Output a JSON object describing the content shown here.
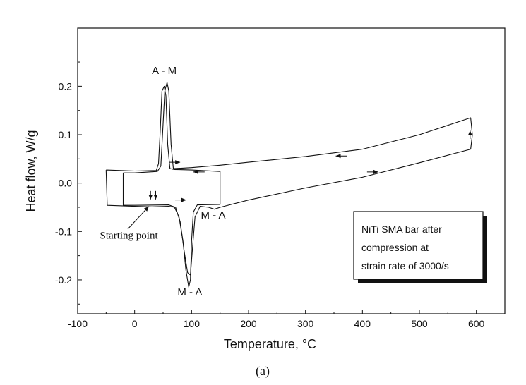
{
  "chart_data": {
    "type": "line",
    "title": "",
    "xlabel": "Temperature,   °C",
    "ylabel": "Heat flow,   W/g",
    "xlim": [
      -100,
      650
    ],
    "ylim": [
      -0.27,
      0.32
    ],
    "x_ticks": [
      -100,
      0,
      100,
      200,
      300,
      400,
      500,
      600
    ],
    "x_tick_labels": [
      "-100",
      "0",
      "100",
      "200",
      "300",
      "400",
      "500",
      "600"
    ],
    "y_ticks": [
      -0.2,
      -0.1,
      0.0,
      0.1,
      0.2
    ],
    "y_tick_labels": [
      "-0.2",
      "-0.1",
      "0.0",
      "0.1",
      "0.2"
    ],
    "grid": false,
    "series": [
      {
        "points": [
          [
            -50,
            0.027
          ],
          [
            -48,
            -0.046
          ],
          [
            0,
            -0.048
          ],
          [
            30,
            -0.049
          ],
          [
            60,
            -0.048
          ],
          [
            70,
            -0.05
          ],
          [
            78,
            -0.07
          ],
          [
            85,
            -0.12
          ],
          [
            90,
            -0.18
          ],
          [
            95,
            -0.215
          ],
          [
            98,
            -0.2
          ],
          [
            100,
            -0.12
          ],
          [
            103,
            -0.06
          ],
          [
            110,
            -0.045
          ],
          [
            150,
            -0.044
          ],
          [
            150,
            0.024
          ],
          [
            100,
            0.027
          ],
          [
            70,
            0.028
          ],
          [
            62,
            0.03
          ],
          [
            58,
            0.08
          ],
          [
            55,
            0.18
          ],
          [
            52,
            0.2
          ],
          [
            48,
            0.19
          ],
          [
            45,
            0.11
          ],
          [
            42,
            0.04
          ],
          [
            38,
            0.026
          ],
          [
            0,
            0.025
          ],
          [
            -50,
            0.027
          ]
        ]
      },
      {
        "points": [
          [
            -20,
            0.021
          ],
          [
            -20,
            -0.046
          ],
          [
            0,
            -0.046
          ],
          [
            60,
            -0.045
          ],
          [
            72,
            -0.05
          ],
          [
            80,
            -0.08
          ],
          [
            87,
            -0.14
          ],
          [
            93,
            -0.185
          ],
          [
            98,
            -0.19
          ],
          [
            102,
            -0.13
          ],
          [
            106,
            -0.07
          ],
          [
            115,
            -0.048
          ],
          [
            130,
            -0.05
          ],
          [
            140,
            -0.054
          ],
          [
            150,
            -0.05
          ],
          [
            200,
            -0.035
          ],
          [
            300,
            -0.01
          ],
          [
            400,
            0.012
          ],
          [
            500,
            0.042
          ],
          [
            590,
            0.07
          ],
          [
            593,
            0.1
          ],
          [
            590,
            0.135
          ],
          [
            500,
            0.1
          ],
          [
            400,
            0.07
          ],
          [
            300,
            0.055
          ],
          [
            200,
            0.043
          ],
          [
            150,
            0.037
          ],
          [
            100,
            0.032
          ],
          [
            68,
            0.03
          ],
          [
            64,
            0.08
          ],
          [
            60,
            0.19
          ],
          [
            57,
            0.208
          ],
          [
            53,
            0.19
          ],
          [
            49,
            0.1
          ],
          [
            46,
            0.035
          ],
          [
            40,
            0.024
          ],
          [
            0,
            0.021
          ],
          [
            -20,
            0.021
          ]
        ]
      }
    ],
    "annotations": [
      {
        "text": "A - M",
        "x": 52,
        "y": 0.225,
        "font": "sans"
      },
      {
        "text": "M - A",
        "x": 138,
        "y": -0.073,
        "font": "sans"
      },
      {
        "text": "M - A",
        "x": 97,
        "y": -0.232,
        "font": "sans"
      },
      {
        "text": "Starting point",
        "x": -10,
        "y": -0.115,
        "font": "serif"
      }
    ],
    "arrows": [
      {
        "x": 70,
        "y": 0.043,
        "dir": "right"
      },
      {
        "x": 113,
        "y": 0.023,
        "dir": "left"
      },
      {
        "x": 363,
        "y": 0.056,
        "dir": "left"
      },
      {
        "x": 418,
        "y": 0.023,
        "dir": "right"
      },
      {
        "x": 81,
        "y": -0.035,
        "dir": "right"
      },
      {
        "x": 589,
        "y": 0.1,
        "dir": "up"
      },
      {
        "x": 28,
        "y": -0.025,
        "dir": "down"
      },
      {
        "x": 37,
        "y": -0.025,
        "dir": "down"
      }
    ],
    "legend_box": {
      "lines": [
        "NiTi SMA bar after",
        "compression at",
        "strain rate of 3000/s"
      ],
      "placement": "lower-right"
    },
    "caption": "(a)"
  }
}
